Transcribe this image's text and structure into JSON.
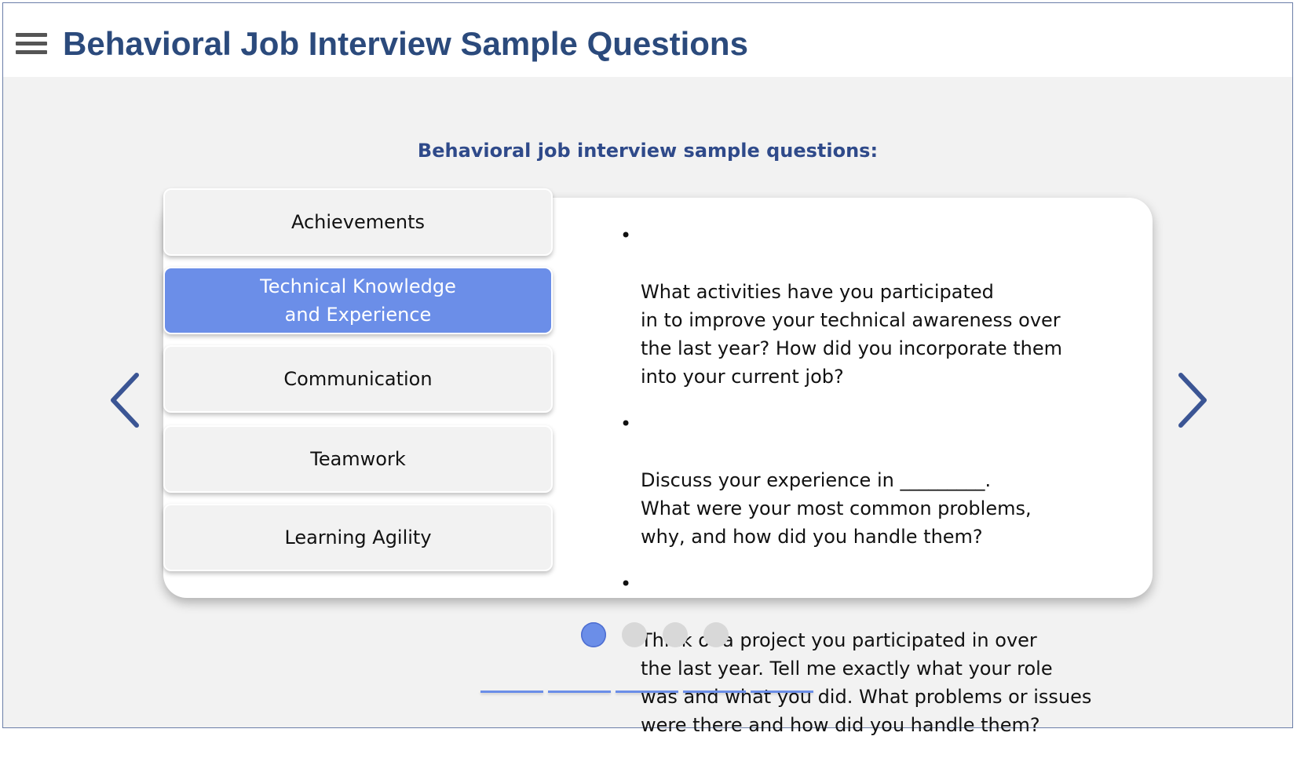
{
  "header": {
    "title": "Behavioral Job Interview Sample Questions",
    "menu_icon": "hamburger-menu-icon"
  },
  "content": {
    "subtitle": "Behavioral job interview sample questions:",
    "tabs": [
      {
        "label": "Achievements",
        "active": false
      },
      {
        "label": "Technical Knowledge\nand Experience",
        "active": true
      },
      {
        "label": "Communication",
        "active": false
      },
      {
        "label": "Teamwork",
        "active": false
      },
      {
        "label": "Learning Agility",
        "active": false
      }
    ],
    "bullet": "•",
    "questions": [
      "What activities have you participated\nin to improve your technical awareness over\nthe last year? How did you incorporate them\ninto your current job?",
      "Discuss your experience in _________.\nWhat were your most common problems,\nwhy, and how did you handle them?",
      "Think of a project you participated in over\nthe last year. Tell me exactly what your role\nwas and what you did. What problems or issues\nwere there and how did you handle them?"
    ]
  },
  "navigation": {
    "prev_icon": "chevron-left-icon",
    "next_icon": "chevron-right-icon",
    "page_dots": 4,
    "active_dot": 1
  },
  "colors": {
    "title": "#2b4a7c",
    "accent": "#6b8ee8",
    "arrow": "#3b5594"
  }
}
